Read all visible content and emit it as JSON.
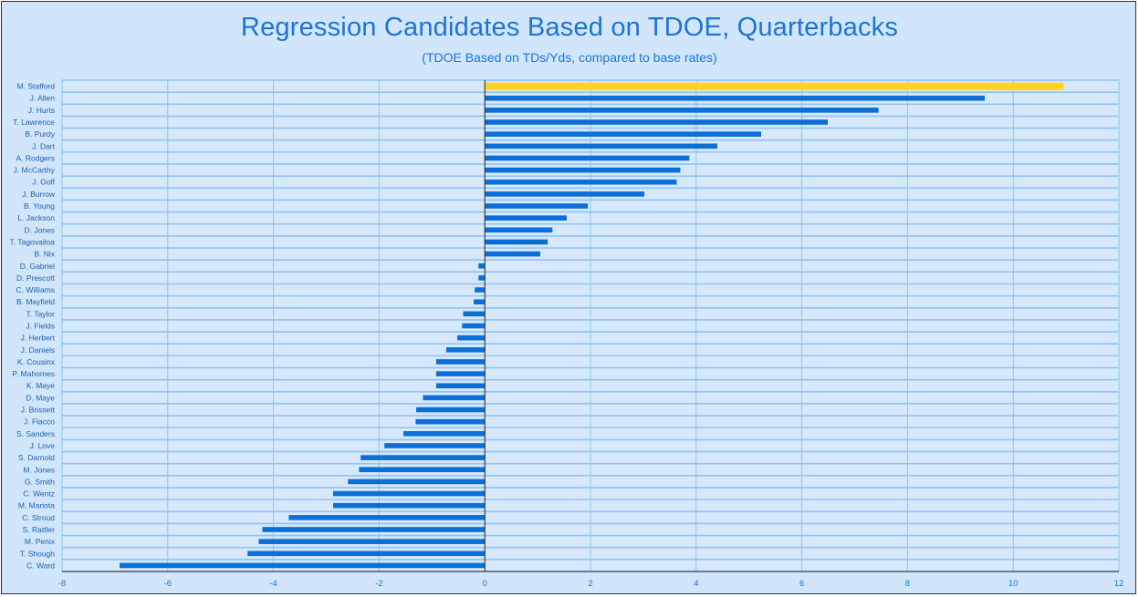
{
  "chart_data": {
    "type": "bar",
    "orientation": "horizontal",
    "title": "Regression Candidates Based on TDOE, Quarterbacks",
    "subtitle": "(TDOE Based on TDs/Yds, compared to base rates)",
    "xlabel": "",
    "ylabel": "",
    "xlim": [
      -8,
      12
    ],
    "xticks": [
      -8,
      -6,
      -4,
      -2,
      0,
      2,
      4,
      6,
      8,
      10,
      12
    ],
    "grid": true,
    "categories": [
      "M. Stafford",
      "J. Allen",
      "J. Hurts",
      "T. Lawrence",
      "B. Purdy",
      "J. Dart",
      "A. Rodgers",
      "J. McCarthy",
      "J. Goff",
      "J. Burrow",
      "B. Young",
      "L. Jackson",
      "D. Jones",
      "T. Tagovailoa",
      "B. Nix",
      "D. Gabriel",
      "D. Prescott",
      "C. Williams",
      "B. Mayfield",
      "T. Taylor",
      "J. Fields",
      "J. Herbert",
      "J. Daniels",
      "K. Cousinx",
      "P. Mahomes",
      "K. Maye",
      "D. Maye",
      "J. Brissett",
      "J. Flacco",
      "S. Sanders",
      "J. Love",
      "S. Darnold",
      "M. Jones",
      "G. Smith",
      "C. Wentz",
      "M. Mariota",
      "C. Stroud",
      "S. Rattler",
      "M. Penix",
      "T. Shough",
      "C. Ward"
    ],
    "values": [
      10.95,
      9.46,
      7.45,
      6.49,
      5.23,
      4.4,
      3.87,
      3.7,
      3.63,
      3.02,
      1.95,
      1.55,
      1.28,
      1.19,
      1.05,
      -0.12,
      -0.12,
      -0.19,
      -0.21,
      -0.41,
      -0.43,
      -0.52,
      -0.73,
      -0.92,
      -0.92,
      -0.92,
      -1.17,
      -1.3,
      -1.31,
      -1.54,
      -1.9,
      -2.35,
      -2.38,
      -2.59,
      -2.87,
      -2.87,
      -3.71,
      -4.21,
      -4.28,
      -4.49,
      -6.91
    ],
    "highlight": "M. Stafford",
    "colors": {
      "bar": "#0a6fd6",
      "highlight": "#ffd21f",
      "grid": "#8ec3f3",
      "background": "#d2e6fb",
      "title": "#1b74d8"
    }
  }
}
